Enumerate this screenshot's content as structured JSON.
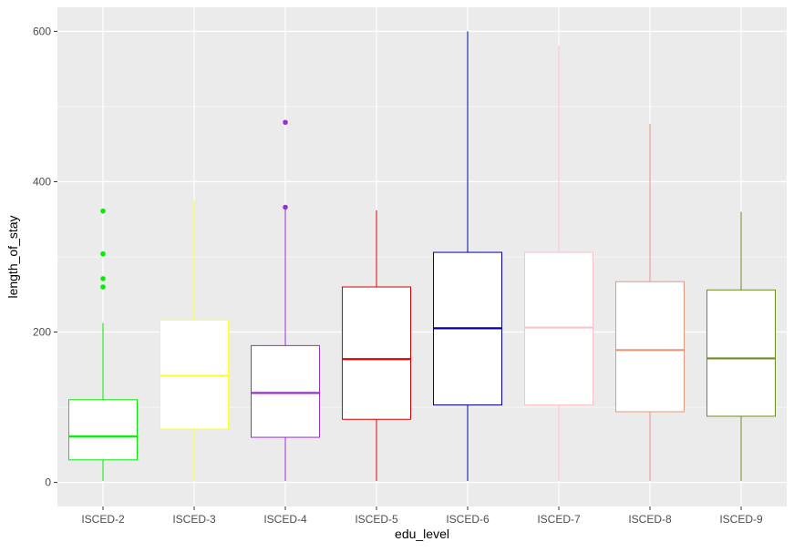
{
  "chart_data": {
    "type": "boxplot",
    "xlabel": "edu_level",
    "ylabel": "length_of_stay",
    "ylim": [
      -32,
      632
    ],
    "yticks": [
      0,
      200,
      400,
      600
    ],
    "grid": true,
    "legend": "none",
    "panel_background": "#ebebeb",
    "grid_color": "#ffffff",
    "categories": [
      "ISCED-2",
      "ISCED-3",
      "ISCED-4",
      "ISCED-5",
      "ISCED-6",
      "ISCED-7",
      "ISCED-8",
      "ISCED-9"
    ],
    "boxes": [
      {
        "category": "ISCED-2",
        "color": "#00ee00",
        "whisker_low": 2,
        "q1": 30,
        "median": 61,
        "q3": 110,
        "whisker_high": 212,
        "outliers": [
          260,
          271,
          304,
          361
        ]
      },
      {
        "category": "ISCED-3",
        "color": "#ffff33",
        "whisker_low": 2,
        "q1": 71,
        "median": 142,
        "q3": 216,
        "whisker_high": 375,
        "outliers": []
      },
      {
        "category": "ISCED-4",
        "color": "#9932cc",
        "whisker_low": 2,
        "q1": 60,
        "median": 119,
        "q3": 182,
        "whisker_high": 365,
        "outliers": [
          366,
          479
        ]
      },
      {
        "category": "ISCED-5",
        "color": "#dd0000",
        "whisker_low": 2,
        "q1": 84,
        "median": 164,
        "q3": 260,
        "whisker_high": 362,
        "outliers": []
      },
      {
        "category": "ISCED-6",
        "color": "#000099",
        "whisker_low": 2,
        "q1": 103,
        "median": 205,
        "q3": 306,
        "whisker_high": 600,
        "outliers": []
      },
      {
        "category": "ISCED-7",
        "color": "#ffc0cb",
        "whisker_low": 2,
        "q1": 103,
        "median": 206,
        "q3": 306,
        "whisker_high": 581,
        "outliers": []
      },
      {
        "category": "ISCED-8",
        "color": "#e9967a",
        "whisker_low": 2,
        "q1": 94,
        "median": 176,
        "q3": 267,
        "whisker_high": 477,
        "outliers": []
      },
      {
        "category": "ISCED-9",
        "color": "#6b8e23",
        "whisker_low": 2,
        "q1": 88,
        "median": 165,
        "q3": 256,
        "whisker_high": 360,
        "outliers": []
      }
    ]
  }
}
